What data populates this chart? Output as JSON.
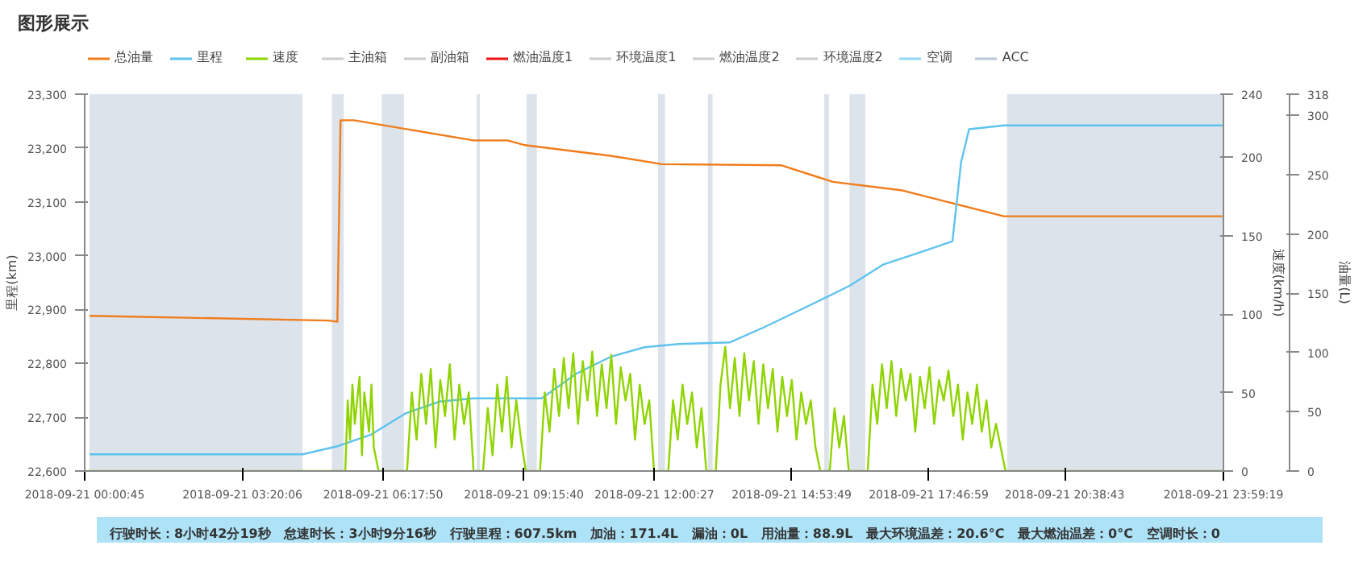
{
  "chart_data": {
    "type": "line",
    "title": "图形展示",
    "xlim": [
      "2018-09-21T00:00:45",
      "2018-09-21T23:59:19"
    ],
    "xticks": [
      {
        "value": "2018-09-21T00:00:45",
        "label": "2018-09-21 00:00:45"
      },
      {
        "value": "2018-09-21T03:20:06",
        "label": "2018-09-21 03:20:06"
      },
      {
        "value": "2018-09-21T06:17:50",
        "label": "2018-09-21 06:17:50"
      },
      {
        "value": "2018-09-21T09:15:40",
        "label": "2018-09-21 09:15:40"
      },
      {
        "value": "2018-09-21T12:00:27",
        "label": "2018-09-21 12:00:27"
      },
      {
        "value": "2018-09-21T14:53:49",
        "label": "2018-09-21 14:53:49"
      },
      {
        "value": "2018-09-21T17:46:59",
        "label": "2018-09-21 17:46:59"
      },
      {
        "value": "2018-09-21T20:38:43",
        "label": "2018-09-21 20:38:43"
      },
      {
        "value": "2018-09-21T23:59:19",
        "label": "2018-09-21 23:59:19"
      }
    ],
    "ylabel": "里程(km)",
    "ylim": [
      22600,
      23300
    ],
    "yticks": [
      {
        "value": 22600,
        "label": "22,600"
      },
      {
        "value": 22700,
        "label": "22,700"
      },
      {
        "value": 22800,
        "label": "22,800"
      },
      {
        "value": 22900,
        "label": "22,900"
      },
      {
        "value": 23000,
        "label": "23,000"
      },
      {
        "value": 23100,
        "label": "23,100"
      },
      {
        "value": 23200,
        "label": "23,200"
      },
      {
        "value": 23300,
        "label": "23,300"
      }
    ],
    "y2label": "速度(km/h)",
    "y2lim": [
      0,
      240
    ],
    "y2ticks": [
      0,
      50,
      100,
      150,
      200,
      240
    ],
    "y3label": "油量(L)",
    "y3lim": [
      0,
      318
    ],
    "y3ticks": [
      0,
      50,
      100,
      150,
      200,
      250,
      300,
      318
    ],
    "grid": false,
    "legend": "top",
    "series": [
      {
        "name": "总油量",
        "color": "#f07c1b",
        "axis": "y3",
        "x": [
          "2018-09-21T00:07",
          "2018-09-21T05:09",
          "2018-09-21T05:20",
          "2018-09-21T05:24",
          "2018-09-21T05:41",
          "2018-09-21T08:12",
          "2018-09-21T08:55",
          "2018-09-21T09:17",
          "2018-09-21T11:05",
          "2018-09-21T12:10",
          "2018-09-21T14:41",
          "2018-09-21T15:46",
          "2018-09-21T17:12",
          "2018-09-21T18:17",
          "2018-09-21T19:22",
          "2018-09-21T23:58"
        ],
        "values": [
          131,
          127,
          126,
          296,
          296,
          279,
          279,
          275,
          266,
          259,
          258,
          244,
          237,
          226,
          215,
          215
        ]
      },
      {
        "name": "里程",
        "color": "#5ec3ee",
        "axis": "y",
        "x": [
          "2018-09-21T00:07",
          "2018-09-21T04:36",
          "2018-09-21T05:20",
          "2018-09-21T06:03",
          "2018-09-21T06:46",
          "2018-09-21T07:29",
          "2018-09-21T08:12",
          "2018-09-21T09:38",
          "2018-09-21T10:22",
          "2018-09-21T11:05",
          "2018-09-21T11:48",
          "2018-09-21T12:31",
          "2018-09-21T13:36",
          "2018-09-21T14:19",
          "2018-09-21T15:24",
          "2018-09-21T16:07",
          "2018-09-21T16:50",
          "2018-09-21T17:34",
          "2018-09-21T18:17",
          "2018-09-21T18:28",
          "2018-09-21T18:38",
          "2018-09-21T19:22",
          "2018-09-21T23:58"
        ],
        "values": [
          22631,
          22631,
          22646,
          22668,
          22707,
          22729,
          22735,
          22735,
          22781,
          22812,
          22830,
          22836,
          22839,
          22867,
          22913,
          22944,
          22984,
          23005,
          23027,
          23174,
          23235,
          23242,
          23242
        ]
      },
      {
        "name": "速度",
        "color": "#8fd400",
        "axis": "y2",
        "x": [
          "2018-09-21T00:00:45",
          "2018-09-21T05:30",
          "2018-09-21T05:33",
          "2018-09-21T05:36",
          "2018-09-21T05:39",
          "2018-09-21T05:42",
          "2018-09-21T05:48",
          "2018-09-21T05:51",
          "2018-09-21T05:54",
          "2018-09-21T06:00",
          "2018-09-21T06:03",
          "2018-09-21T06:06",
          "2018-09-21T06:12",
          "2018-09-21T06:48",
          "2018-09-21T06:54",
          "2018-09-21T07:00",
          "2018-09-21T07:06",
          "2018-09-21T07:12",
          "2018-09-21T07:18",
          "2018-09-21T07:24",
          "2018-09-21T07:30",
          "2018-09-21T07:36",
          "2018-09-21T07:42",
          "2018-09-21T07:48",
          "2018-09-21T07:54",
          "2018-09-21T08:00",
          "2018-09-21T08:06",
          "2018-09-21T08:12",
          "2018-09-21T08:24",
          "2018-09-21T08:30",
          "2018-09-21T08:36",
          "2018-09-21T08:42",
          "2018-09-21T08:48",
          "2018-09-21T08:54",
          "2018-09-21T09:00",
          "2018-09-21T09:06",
          "2018-09-21T09:12",
          "2018-09-21T09:18",
          "2018-09-21T09:36",
          "2018-09-21T09:42",
          "2018-09-21T09:48",
          "2018-09-21T09:54",
          "2018-09-21T10:00",
          "2018-09-21T10:06",
          "2018-09-21T10:12",
          "2018-09-21T10:18",
          "2018-09-21T10:24",
          "2018-09-21T10:30",
          "2018-09-21T10:36",
          "2018-09-21T10:42",
          "2018-09-21T10:48",
          "2018-09-21T10:54",
          "2018-09-21T11:00",
          "2018-09-21T11:06",
          "2018-09-21T11:12",
          "2018-09-21T11:18",
          "2018-09-21T11:24",
          "2018-09-21T11:30",
          "2018-09-21T11:36",
          "2018-09-21T11:42",
          "2018-09-21T11:48",
          "2018-09-21T11:54",
          "2018-09-21T12:00",
          "2018-09-21T12:18",
          "2018-09-21T12:24",
          "2018-09-21T12:30",
          "2018-09-21T12:36",
          "2018-09-21T12:42",
          "2018-09-21T12:48",
          "2018-09-21T12:54",
          "2018-09-21T13:00",
          "2018-09-21T13:06",
          "2018-09-21T13:18",
          "2018-09-21T13:24",
          "2018-09-21T13:30",
          "2018-09-21T13:36",
          "2018-09-21T13:42",
          "2018-09-21T13:48",
          "2018-09-21T13:54",
          "2018-09-21T14:00",
          "2018-09-21T14:06",
          "2018-09-21T14:12",
          "2018-09-21T14:18",
          "2018-09-21T14:24",
          "2018-09-21T14:30",
          "2018-09-21T14:36",
          "2018-09-21T14:42",
          "2018-09-21T14:48",
          "2018-09-21T14:54",
          "2018-09-21T15:00",
          "2018-09-21T15:06",
          "2018-09-21T15:12",
          "2018-09-21T15:18",
          "2018-09-21T15:24",
          "2018-09-21T15:30",
          "2018-09-21T15:42",
          "2018-09-21T15:48",
          "2018-09-21T15:54",
          "2018-09-21T16:00",
          "2018-09-21T16:06",
          "2018-09-21T16:30",
          "2018-09-21T16:36",
          "2018-09-21T16:42",
          "2018-09-21T16:48",
          "2018-09-21T16:54",
          "2018-09-21T17:00",
          "2018-09-21T17:06",
          "2018-09-21T17:12",
          "2018-09-21T17:18",
          "2018-09-21T17:24",
          "2018-09-21T17:30",
          "2018-09-21T17:36",
          "2018-09-21T17:42",
          "2018-09-21T17:48",
          "2018-09-21T17:54",
          "2018-09-21T18:00",
          "2018-09-21T18:06",
          "2018-09-21T18:12",
          "2018-09-21T18:18",
          "2018-09-21T18:24",
          "2018-09-21T18:30",
          "2018-09-21T18:36",
          "2018-09-21T18:42",
          "2018-09-21T18:48",
          "2018-09-21T18:54",
          "2018-09-21T19:00",
          "2018-09-21T19:06",
          "2018-09-21T19:12",
          "2018-09-21T19:24",
          "2018-09-21T23:59:19"
        ],
        "values": [
          0,
          0,
          45,
          20,
          55,
          30,
          60,
          10,
          50,
          25,
          55,
          15,
          0,
          0,
          50,
          20,
          62,
          30,
          65,
          15,
          58,
          35,
          68,
          20,
          55,
          30,
          50,
          0,
          0,
          40,
          10,
          55,
          25,
          60,
          15,
          45,
          20,
          0,
          0,
          50,
          25,
          65,
          35,
          72,
          40,
          75,
          30,
          70,
          45,
          76,
          35,
          68,
          40,
          74,
          30,
          66,
          45,
          62,
          20,
          55,
          30,
          45,
          0,
          0,
          45,
          20,
          55,
          30,
          50,
          15,
          40,
          0,
          0,
          55,
          79,
          40,
          72,
          35,
          75,
          45,
          70,
          30,
          68,
          40,
          65,
          25,
          60,
          35,
          58,
          20,
          50,
          30,
          45,
          15,
          0,
          0,
          40,
          15,
          35,
          0,
          0,
          55,
          30,
          68,
          40,
          70,
          35,
          65,
          45,
          62,
          25,
          60,
          40,
          66,
          30,
          58,
          45,
          64,
          35,
          55,
          20,
          50,
          30,
          55,
          25,
          45,
          15,
          30,
          0,
          0
        ]
      },
      {
        "name": "主油箱",
        "color": "#cccccc"
      },
      {
        "name": "副油箱",
        "color": "#cccccc"
      },
      {
        "name": "燃油温度1",
        "color": "#ee1111"
      },
      {
        "name": "环境温度1",
        "color": "#cccccc"
      },
      {
        "name": "燃油温度2",
        "color": "#cccccc"
      },
      {
        "name": "环境温度2",
        "color": "#cccccc"
      },
      {
        "name": "空调",
        "color": "#8fd8f5"
      },
      {
        "name": "ACC",
        "color": "#b8c6d8"
      }
    ],
    "bands": [
      {
        "axis": "x",
        "from": "2018-09-21T00:07",
        "to": "2018-09-21T04:36",
        "color": "#dce3eb"
      },
      {
        "axis": "x",
        "from": "2018-09-21T05:13",
        "to": "2018-09-21T05:28",
        "color": "#dce3eb"
      },
      {
        "axis": "x",
        "from": "2018-09-21T06:16",
        "to": "2018-09-21T06:44",
        "color": "#dce3eb"
      },
      {
        "axis": "x",
        "from": "2018-09-21T08:16",
        "to": "2018-09-21T08:20",
        "color": "#dce3eb"
      },
      {
        "axis": "x",
        "from": "2018-09-21T09:19",
        "to": "2018-09-21T09:32",
        "color": "#dce3eb"
      },
      {
        "axis": "x",
        "from": "2018-09-21T12:05",
        "to": "2018-09-21T12:14",
        "color": "#dce3eb"
      },
      {
        "axis": "x",
        "from": "2018-09-21T13:08",
        "to": "2018-09-21T13:14",
        "color": "#dce3eb"
      },
      {
        "axis": "x",
        "from": "2018-09-21T15:35",
        "to": "2018-09-21T15:41",
        "color": "#dce3eb"
      },
      {
        "axis": "x",
        "from": "2018-09-21T16:07",
        "to": "2018-09-21T16:27",
        "color": "#dce3eb"
      },
      {
        "axis": "x",
        "from": "2018-09-21T19:26",
        "to": "2018-09-21T23:58",
        "color": "#dce3eb"
      }
    ],
    "annotations": [
      "行驶时长：8小时42分19秒",
      "怠速时长：3小时9分16秒",
      "行驶里程：607.5km",
      "加油：171.4L",
      "漏油：0L",
      "用油量：88.9L",
      "最大环境温差：20.6°C",
      "最大燃油温差：0°C",
      "空调时长：0"
    ]
  }
}
